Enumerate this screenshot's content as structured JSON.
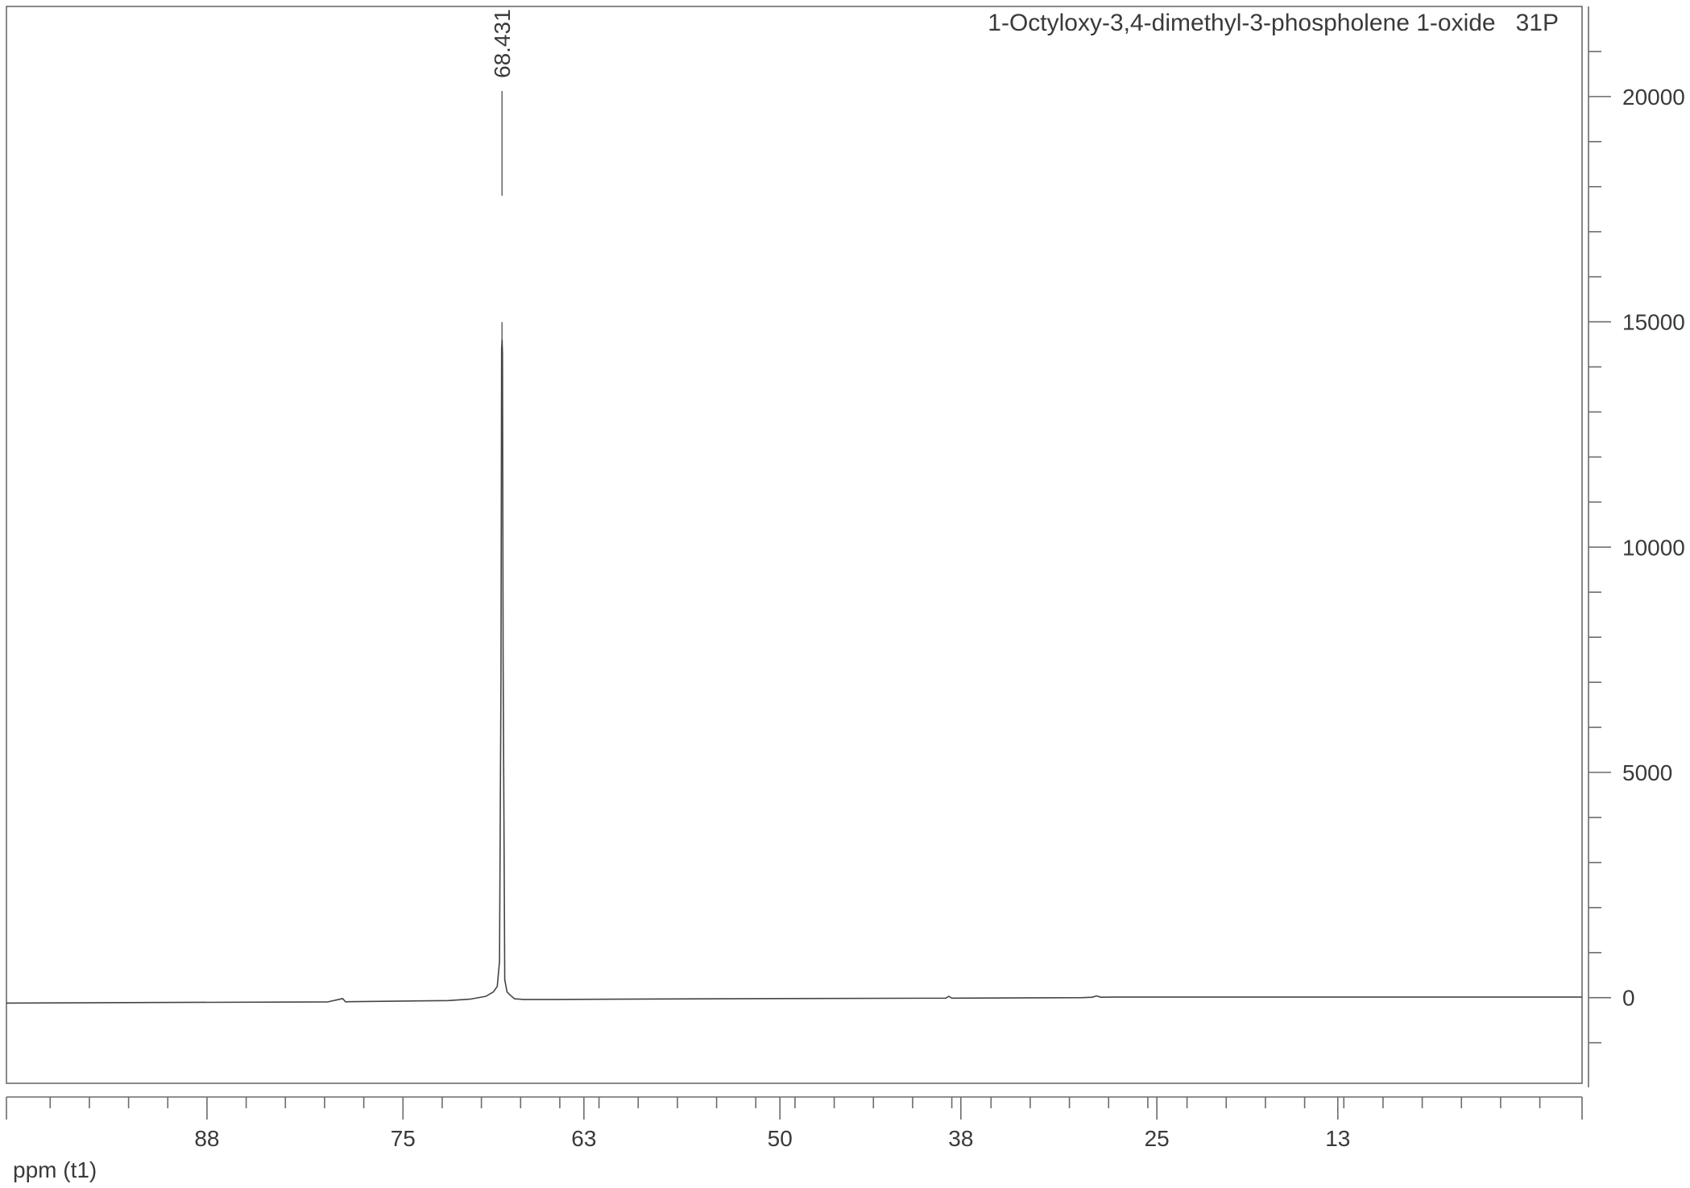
{
  "chart_data": {
    "type": "line",
    "title": "1-Octyloxy-3,4-dimethyl-3-phospholene 1-oxide   31P",
    "xlabel": "ppm (t1)",
    "ylabel": "",
    "xlim": [
      101.3,
      -3.2
    ],
    "ylim": [
      -1900,
      22000
    ],
    "x_major_ticks": [
      88,
      75,
      63,
      50,
      38,
      25,
      13
    ],
    "x_tick_labels": [
      "88",
      "75",
      "63",
      "50",
      "38",
      "25",
      "13"
    ],
    "x_minor_step": 2.6,
    "y_major_ticks": [
      0,
      5000,
      10000,
      15000,
      20000
    ],
    "y_tick_labels": [
      "0",
      "5000",
      "10000",
      "15000",
      "20000"
    ],
    "y_minor_step": 1000,
    "peak_labels": [
      {
        "ppm": 68.431,
        "text": "68.431"
      }
    ],
    "series": [
      {
        "x": [
          101.3,
          90.0,
          80.0,
          79.0,
          78.8,
          78.6,
          72.0,
          70.5,
          69.5,
          69.0,
          68.75,
          68.6,
          68.5,
          68.46,
          68.43,
          68.4,
          68.36,
          68.25,
          68.1,
          67.9,
          67.6,
          67.0,
          65.0,
          50.0,
          39.0,
          38.8,
          38.6,
          30.0,
          29.3,
          29.0,
          28.7,
          28.0,
          10.0,
          -3.2
        ],
        "y": [
          -120,
          -105,
          -95,
          -20,
          -95,
          -90,
          -65,
          -30,
          30,
          130,
          250,
          800,
          7000,
          14400,
          14600,
          14300,
          7500,
          400,
          130,
          60,
          -25,
          -40,
          -40,
          -20,
          -10,
          30,
          -10,
          0,
          10,
          40,
          10,
          15,
          15,
          15
        ]
      }
    ]
  }
}
